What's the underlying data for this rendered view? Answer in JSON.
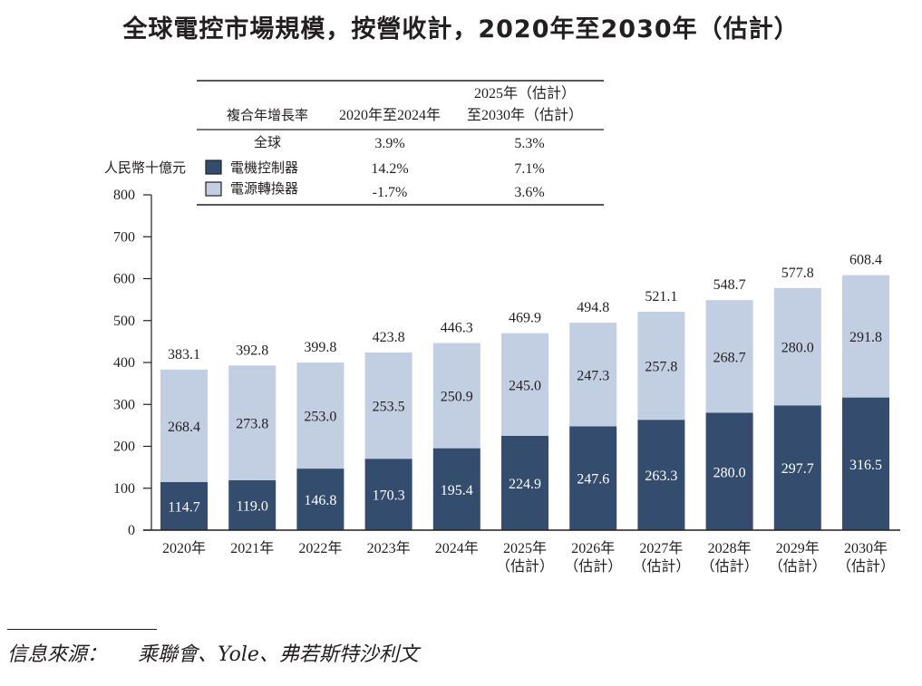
{
  "title": "全球電控市場規模，按營收計，2020年至2030年（估計）",
  "chart_data": {
    "type": "bar",
    "stacked": true,
    "title": "全球電控市場規模，按營收計，2020年至2030年（估計）",
    "ylabel": "人民幣十億元",
    "xlabel": "",
    "ylim": [
      0,
      800
    ],
    "yticks": [
      0,
      100,
      200,
      300,
      400,
      500,
      600,
      700,
      800
    ],
    "grid": false,
    "categories": [
      {
        "year": "2020年",
        "note": ""
      },
      {
        "year": "2021年",
        "note": ""
      },
      {
        "year": "2022年",
        "note": ""
      },
      {
        "year": "2023年",
        "note": ""
      },
      {
        "year": "2024年",
        "note": ""
      },
      {
        "year": "2025年",
        "note": "（估計）"
      },
      {
        "year": "2026年",
        "note": "（估計）"
      },
      {
        "year": "2027年",
        "note": "（估計）"
      },
      {
        "year": "2028年",
        "note": "（估計）"
      },
      {
        "year": "2029年",
        "note": "（估計）"
      },
      {
        "year": "2030年",
        "note": "（估計）"
      }
    ],
    "series": [
      {
        "name": "電機控制器",
        "color": "#344c6e",
        "values": [
          114.7,
          119.0,
          146.8,
          170.3,
          195.4,
          224.9,
          247.6,
          263.3,
          280.0,
          297.7,
          316.5
        ]
      },
      {
        "name": "電源轉換器",
        "color": "#c2cee1",
        "values": [
          268.4,
          273.8,
          253.0,
          253.5,
          250.9,
          245.0,
          247.3,
          257.8,
          268.7,
          280.0,
          291.8
        ]
      }
    ],
    "totals": [
      383.1,
      392.8,
      399.8,
      423.8,
      446.3,
      469.9,
      494.8,
      521.1,
      548.7,
      577.8,
      608.4
    ],
    "legend": {
      "placement": "top-center",
      "header": [
        "複合年增長率",
        "2020年至2024年",
        "2025年（估計）",
        "至2030年（估計）"
      ],
      "rows": [
        {
          "label": "全球",
          "cagr_2020_2024": "3.9%",
          "cagr_2025_2030": "5.3%"
        },
        {
          "label": "電機控制器",
          "cagr_2020_2024": "14.2%",
          "cagr_2025_2030": "7.1%"
        },
        {
          "label": "電源轉換器",
          "cagr_2020_2024": "-1.7%",
          "cagr_2025_2030": "3.6%"
        }
      ]
    }
  },
  "source": {
    "label": "信息來源：",
    "text": "乘聯會、Yole、弗若斯特沙利文"
  }
}
